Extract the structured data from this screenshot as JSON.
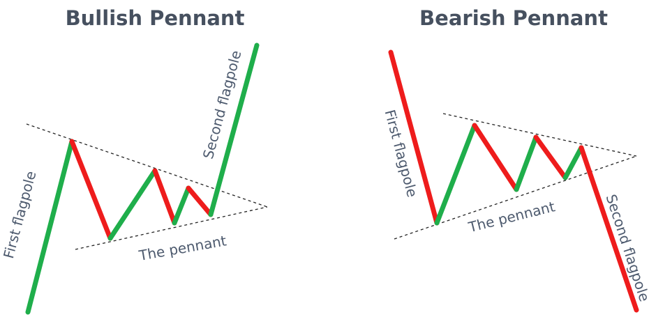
{
  "panels": [
    {
      "title": "Bullish Pennant",
      "first_flagpole": "First flagpole",
      "second_flagpole": "Second flagpole",
      "pennant": "The pennant"
    },
    {
      "title": "Bearish Pennant",
      "first_flagpole": "First flagpole",
      "second_flagpole": "Second flagpole",
      "pennant": "The pennant"
    }
  ]
}
